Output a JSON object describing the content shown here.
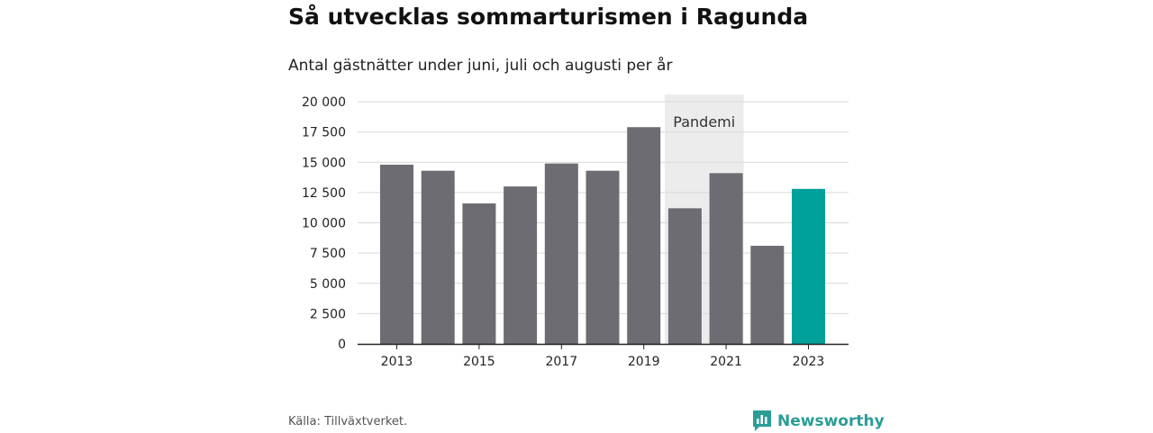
{
  "title": "Så utvecklas sommarturismen i Ragunda",
  "subtitle": "Antal gästnätter under juni, juli och augusti per år",
  "source": "Källa: Tillväxtverket.",
  "brand": "Newsworthy",
  "colors": {
    "bar": "#6d6c72",
    "highlight": "#00a19a",
    "pandemic_band": "#ececec",
    "grid": "#d9d9d9",
    "brand": "#2a9d95"
  },
  "chart_data": {
    "type": "bar",
    "title": "Så utvecklas sommarturismen i Ragunda",
    "subtitle": "Antal gästnätter under juni, juli och augusti per år",
    "categories": [
      "2013",
      "2014",
      "2015",
      "2016",
      "2017",
      "2018",
      "2019",
      "2020",
      "2021",
      "2022",
      "2023"
    ],
    "values": [
      14800,
      14300,
      11600,
      13000,
      14900,
      14300,
      17900,
      11200,
      14100,
      8100,
      12800
    ],
    "highlight_category": "2023",
    "ylim": [
      0,
      20000
    ],
    "yticks": [
      0,
      2500,
      5000,
      7500,
      10000,
      12500,
      15000,
      17500,
      20000
    ],
    "ytick_labels": [
      "0",
      "2 500",
      "5 000",
      "7 500",
      "10 000",
      "12 500",
      "15 000",
      "17 500",
      "20 000"
    ],
    "xtick_labels": [
      "2013",
      "2015",
      "2017",
      "2019",
      "2021",
      "2023"
    ],
    "annotation": {
      "text": "Pandemi",
      "from": "2020",
      "to": "2021"
    },
    "grid": true
  }
}
